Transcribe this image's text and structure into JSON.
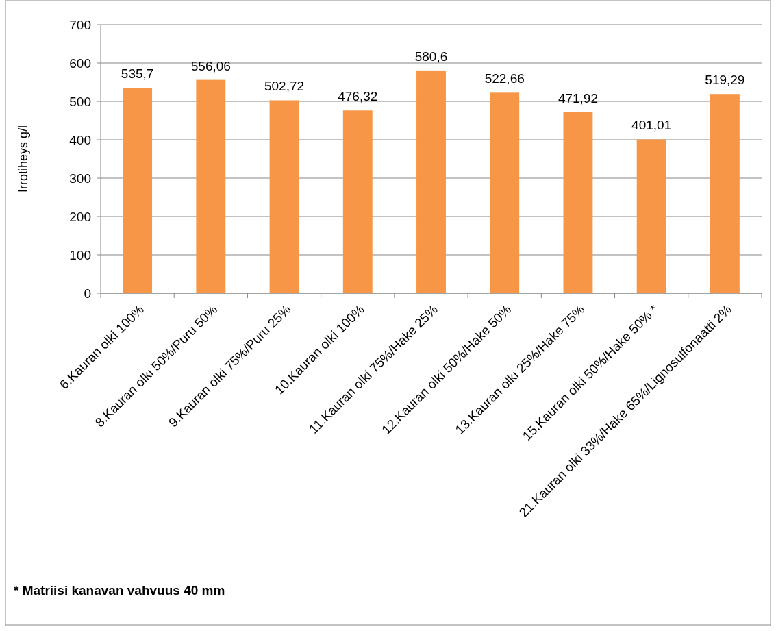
{
  "chart_data": {
    "type": "bar",
    "ylabel": "Irrotiheys g/l",
    "categories": [
      "6.Kauran olki 100%",
      "8.Kauran olki 50%/Puru 50%",
      "9.Kauran olki 75%/Puru 25%",
      "10.Kauran olki 100%",
      "11.Kauran olki 75%/Hake 25%",
      "12.Kauran olki 50%/Hake 50%",
      "13.Kauran olki 25%/Hake 75%",
      "15.Kauran olki 50%/Hake 50% *",
      "21.Kauran olki 33%/Hake 65%/Lignosulfonaatti 2%"
    ],
    "values": [
      535.7,
      556.06,
      502.72,
      476.32,
      580.6,
      522.66,
      471.92,
      401.01,
      519.29
    ],
    "value_labels": [
      "535,7",
      "556,06",
      "502,72",
      "476,32",
      "580,6",
      "522,66",
      "471,92",
      "401,01",
      "519,29"
    ],
    "color": "#f79646",
    "ylim": [
      0,
      700
    ],
    "yticks": [
      0,
      100,
      200,
      300,
      400,
      500,
      600,
      700
    ],
    "grid": "y",
    "annotations": [
      "* Matriisi kanavan vahvuus 40 mm"
    ]
  }
}
